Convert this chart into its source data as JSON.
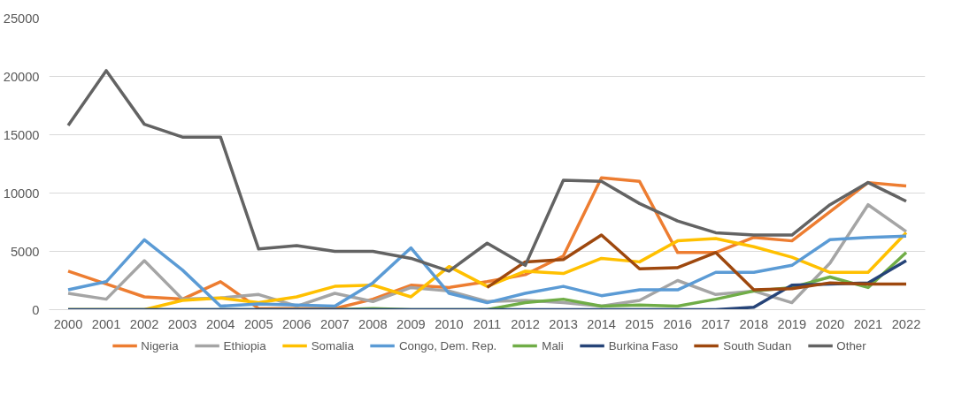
{
  "chart_data": {
    "type": "line",
    "categories": [
      "2000",
      "2001",
      "2002",
      "2003",
      "2004",
      "2005",
      "2006",
      "2007",
      "2008",
      "2009",
      "2010",
      "2011",
      "2012",
      "2013",
      "2014",
      "2015",
      "2016",
      "2017",
      "2018",
      "2019",
      "2020",
      "2021",
      "2022"
    ],
    "series": [
      {
        "name": "Nigeria",
        "color": "#ed7d31",
        "values": [
          3300,
          2200,
          1100,
          900,
          2400,
          100,
          100,
          100,
          900,
          2100,
          1900,
          2400,
          3000,
          4600,
          11300,
          11000,
          4900,
          4900,
          6200,
          5900,
          8400,
          10900,
          10600
        ]
      },
      {
        "name": "Ethiopia",
        "color": "#a5a5a5",
        "values": [
          1400,
          900,
          4200,
          900,
          1000,
          1300,
          300,
          1400,
          700,
          1900,
          1600,
          700,
          800,
          600,
          300,
          800,
          2500,
          1300,
          1600,
          600,
          4000,
          9000,
          6700
        ]
      },
      {
        "name": "Somalia",
        "color": "#ffc000",
        "values": [
          0,
          0,
          0,
          800,
          1000,
          600,
          1100,
          2000,
          2100,
          1100,
          3700,
          2000,
          3300,
          3100,
          4400,
          4100,
          5900,
          6100,
          5400,
          4500,
          3200,
          3200,
          6600
        ]
      },
      {
        "name": "Congo, Dem. Rep.",
        "color": "#5b9bd5",
        "values": [
          1700,
          2400,
          6000,
          3400,
          300,
          500,
          400,
          300,
          2300,
          5300,
          1400,
          600,
          1400,
          2000,
          1200,
          1700,
          1700,
          3200,
          3200,
          3800,
          6000,
          6200,
          6300
        ]
      },
      {
        "name": "Mali",
        "color": "#70ad47",
        "values": [
          0,
          0,
          0,
          0,
          0,
          0,
          0,
          0,
          100,
          0,
          0,
          0,
          600,
          900,
          300,
          400,
          300,
          900,
          1600,
          1900,
          2800,
          1900,
          4900
        ]
      },
      {
        "name": "Burkina Faso",
        "color": "#264478",
        "values": [
          0,
          0,
          0,
          0,
          0,
          0,
          0,
          0,
          0,
          0,
          0,
          0,
          0,
          0,
          0,
          0,
          0,
          0,
          200,
          2100,
          2200,
          2300,
          4200
        ]
      },
      {
        "name": "South Sudan",
        "color": "#9e480e",
        "values": [
          null,
          null,
          null,
          null,
          null,
          null,
          null,
          null,
          null,
          null,
          null,
          1900,
          4100,
          4300,
          6400,
          3500,
          3600,
          4900,
          1700,
          1800,
          2300,
          2200,
          2200
        ]
      },
      {
        "name": "Other",
        "color": "#636363",
        "values": [
          15800,
          20500,
          15900,
          14800,
          14800,
          5200,
          5500,
          5000,
          5000,
          4400,
          3300,
          5700,
          3800,
          11100,
          11000,
          9100,
          7600,
          6600,
          6400,
          6400,
          9000,
          10900,
          9300
        ]
      }
    ],
    "ylim": [
      0,
      25000
    ],
    "yticks": [
      0,
      5000,
      10000,
      15000,
      20000,
      25000
    ],
    "grid": "y",
    "legend": "bottom",
    "marker": "none",
    "line_style": "solid"
  }
}
